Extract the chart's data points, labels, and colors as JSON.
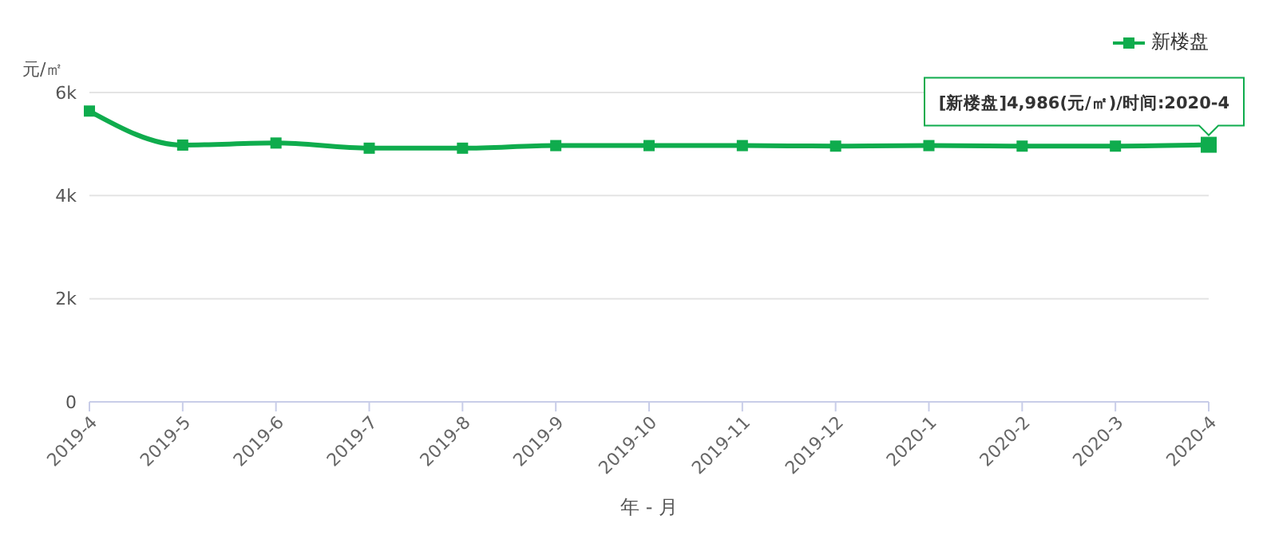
{
  "chart_data": {
    "type": "line",
    "ylabel": "元/㎡",
    "xlabel": "年 - 月",
    "categories": [
      "2019-4",
      "2019-5",
      "2019-6",
      "2019-7",
      "2019-8",
      "2019-9",
      "2019-10",
      "2019-11",
      "2019-12",
      "2020-1",
      "2020-2",
      "2020-3",
      "2020-4"
    ],
    "series": [
      {
        "name": "新楼盘",
        "color": "#0fac4d",
        "values": [
          5640,
          4980,
          5020,
          4920,
          4920,
          4970,
          4970,
          4970,
          4960,
          4970,
          4960,
          4960,
          4986
        ]
      }
    ],
    "ylim": [
      0,
      6000
    ],
    "yticks": [
      0,
      {
        "value": 2000,
        "label": "2k"
      },
      {
        "value": 4000,
        "label": "4k"
      },
      {
        "value": 6000,
        "label": "6k"
      }
    ],
    "grid": "y",
    "legend": "top right",
    "marker": "square",
    "line_style": "solid",
    "annotations": [
      {
        "text": "[新楼盘]4,986(元/㎡)/时间:2020-4",
        "x": "2020-4",
        "y": 4986
      }
    ]
  }
}
